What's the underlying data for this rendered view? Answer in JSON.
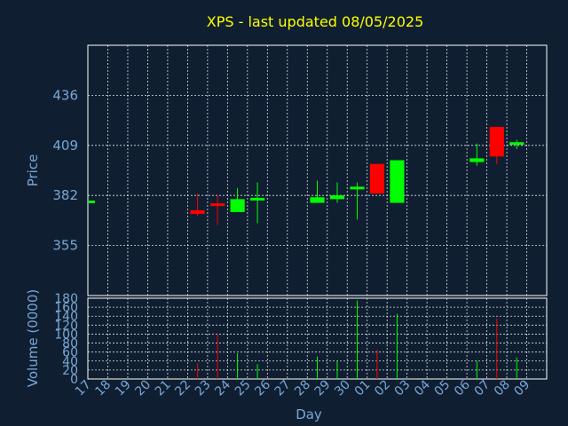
{
  "chart_data": {
    "type": "candlestick",
    "title": "XPS - last updated 08/05/2025",
    "xlabel": "Day",
    "ylabel": "Price",
    "volume_label": "Volume (0000)",
    "x_ticks": [
      "17",
      "18",
      "19",
      "20",
      "21",
      "22",
      "23",
      "24",
      "25",
      "26",
      "27",
      "28",
      "29",
      "30",
      "01",
      "02",
      "03",
      "04",
      "05",
      "06",
      "07",
      "08",
      "09"
    ],
    "price_ticks": [
      355,
      382,
      409,
      436
    ],
    "price_range": [
      328,
      463
    ],
    "volume_ticks": [
      0,
      20,
      40,
      60,
      80,
      100,
      120,
      140,
      160,
      180
    ],
    "volume_range": [
      0,
      180
    ],
    "grid": true,
    "colors": {
      "up": "#00ff00",
      "down": "#ff0000"
    },
    "candles": [
      {
        "day": "17",
        "open": 378.5,
        "high": 378.5,
        "low": 378.5,
        "close": 378.5,
        "volume": 0
      },
      {
        "day": "22",
        "open": 374,
        "high": 383,
        "low": 371,
        "close": 372,
        "volume": 35
      },
      {
        "day": "23",
        "open": 377,
        "high": 382,
        "low": 366,
        "close": 376,
        "volume": 100
      },
      {
        "day": "24",
        "open": 373,
        "high": 386,
        "low": 373,
        "close": 380,
        "volume": 57
      },
      {
        "day": "25",
        "open": 379,
        "high": 389,
        "low": 367,
        "close": 380,
        "volume": 33
      },
      {
        "day": "28",
        "open": 378,
        "high": 390,
        "low": 378,
        "close": 381,
        "volume": 50
      },
      {
        "day": "29",
        "open": 380,
        "high": 389,
        "low": 378,
        "close": 382,
        "volume": 40
      },
      {
        "day": "30",
        "open": 385,
        "high": 389,
        "low": 369,
        "close": 386,
        "volume": 175
      },
      {
        "day": "01",
        "open": 399,
        "high": 399,
        "low": 383,
        "close": 383,
        "volume": 65
      },
      {
        "day": "02",
        "open": 378,
        "high": 401,
        "low": 378,
        "close": 401,
        "volume": 145
      },
      {
        "day": "06",
        "open": 400,
        "high": 410,
        "low": 398,
        "close": 402,
        "volume": 40
      },
      {
        "day": "07",
        "open": 419,
        "high": 419,
        "low": 399,
        "close": 403,
        "volume": 135
      },
      {
        "day": "08",
        "open": 409,
        "high": 412,
        "low": 407,
        "close": 410,
        "volume": 48
      }
    ]
  }
}
